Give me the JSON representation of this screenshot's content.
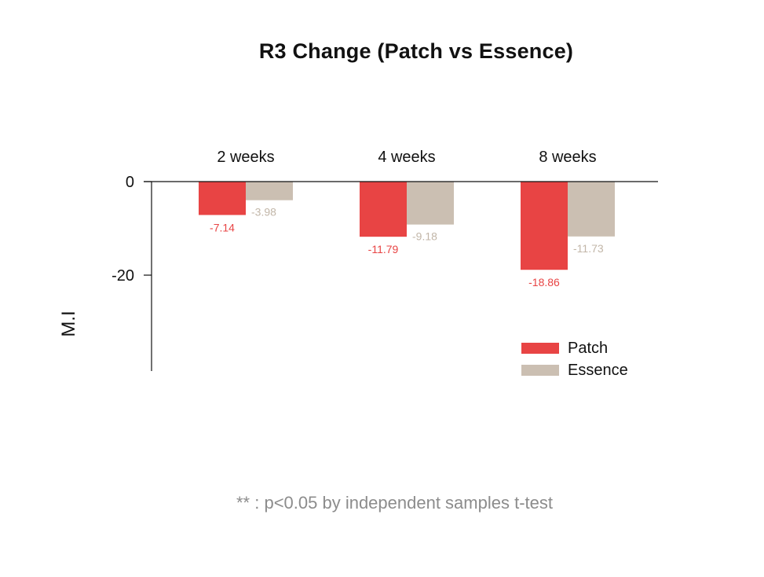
{
  "chart_data": {
    "type": "bar",
    "title": "R3 Change (Patch vs Essence)",
    "ylabel": "M.I",
    "xlabel": "",
    "categories": [
      "2 weeks",
      "4 weeks",
      "8 weeks"
    ],
    "series": [
      {
        "name": "Patch",
        "color": "#e84444",
        "values": [
          -7.14,
          -11.79,
          -18.86
        ],
        "labels": [
          "-7.14",
          "-11.79",
          "-18.86"
        ]
      },
      {
        "name": "Essence",
        "color": "#cbbfb2",
        "values": [
          -3.98,
          -9.18,
          -11.73
        ],
        "labels": [
          "-3.98",
          "-9.18",
          "-11.73"
        ]
      }
    ],
    "yticks": [
      "0",
      "-20"
    ],
    "ytick_values": [
      0,
      -20
    ],
    "ylim": [
      -40.5,
      0
    ],
    "legend_position": "bottom-right",
    "grid": false
  },
  "footnote": "** : p<0.05 by independent samples t-test"
}
